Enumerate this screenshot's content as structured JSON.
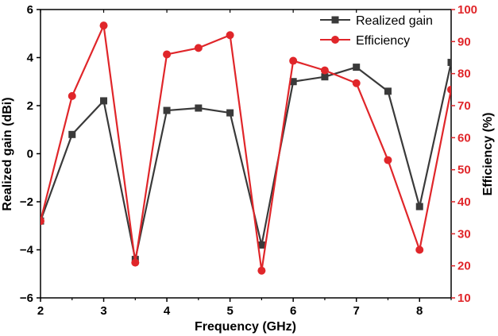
{
  "chart_data": {
    "type": "line",
    "title": "",
    "xlabel": "Frequency (GHz)",
    "ylabel_left": "Realized gain (dBi)",
    "ylabel_right": "Efficiency (%)",
    "xlim": [
      2,
      8.5
    ],
    "ylim_left": [
      -6,
      6
    ],
    "ylim_right": [
      10,
      100
    ],
    "x_ticks": [
      "2",
      "3",
      "4",
      "5",
      "6",
      "7",
      "8"
    ],
    "y_ticks_left": [
      "-6",
      "-4",
      "-2",
      "0",
      "2",
      "4",
      "6"
    ],
    "y_ticks_right": [
      "10",
      "20",
      "30",
      "40",
      "50",
      "60",
      "70",
      "80",
      "90",
      "100"
    ],
    "grid": false,
    "legend_position": "top-right",
    "x": [
      2,
      2.5,
      3,
      3.5,
      4,
      4.5,
      5,
      5.5,
      6,
      6.5,
      7,
      7.5,
      8,
      8.5
    ],
    "series": [
      {
        "name": "Realized gain",
        "axis": "left",
        "marker": "square",
        "color": "#3a3a3a",
        "values": [
          -2.8,
          0.8,
          2.2,
          -4.4,
          1.8,
          1.9,
          1.7,
          -3.8,
          3.0,
          3.2,
          3.6,
          2.6,
          -2.2,
          3.8
        ]
      },
      {
        "name": "Efficiency",
        "axis": "right",
        "marker": "circle",
        "color": "#e0262a",
        "values": [
          34,
          73,
          95,
          21,
          86,
          88,
          92,
          18.5,
          84,
          81,
          77,
          53,
          25,
          75
        ]
      }
    ]
  },
  "colors": {
    "left_axis": "#000000",
    "right_axis": "#e0262a",
    "gain_line": "#3a3a3a",
    "efficiency_line": "#e0262a"
  }
}
